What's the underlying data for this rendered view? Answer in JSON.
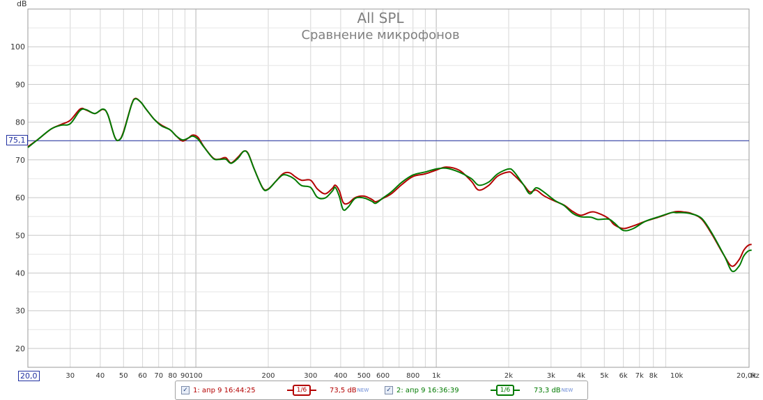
{
  "chart_data": {
    "type": "line",
    "title": "All SPL",
    "subtitle": "Сравнение микрофонов",
    "ylabel": "dB",
    "xunit": "Hz",
    "xscale": "log",
    "xlim": [
      20,
      20000
    ],
    "ylim": [
      15,
      110
    ],
    "grid": true,
    "ytick_labels": [
      "20",
      "30",
      "40",
      "50",
      "60",
      "70",
      "80",
      "90",
      "100"
    ],
    "xtick_labels": [
      "30",
      "40",
      "50",
      "60",
      "70",
      "80",
      "90",
      "100",
      "200",
      "300",
      "400",
      "500",
      "600",
      "800",
      "1k",
      "2k",
      "3k",
      "4k",
      "5k",
      "6k",
      "7k",
      "8k",
      "10k",
      "20,0k"
    ],
    "x_left_label": "20,0",
    "reference_line_label": "75,1",
    "reference_line_value": 75.1,
    "series": [
      {
        "name": "1: апр 9 16:44:25",
        "color": "#b30000",
        "smoothing": "1/6",
        "level": "73,5 dB",
        "level_badge": "NEW",
        "points": [
          [
            20,
            73.5
          ],
          [
            22,
            75.4
          ],
          [
            25,
            78.2
          ],
          [
            27.5,
            79.4
          ],
          [
            30,
            80.5
          ],
          [
            33,
            83.5
          ],
          [
            35,
            83.2
          ],
          [
            38,
            82.3
          ],
          [
            41,
            83.4
          ],
          [
            43,
            82
          ],
          [
            46,
            76
          ],
          [
            48,
            75.3
          ],
          [
            50,
            77.5
          ],
          [
            54,
            84.7
          ],
          [
            56,
            86.3
          ],
          [
            59,
            85.3
          ],
          [
            62,
            83.5
          ],
          [
            67,
            80.8
          ],
          [
            72,
            79.2
          ],
          [
            78,
            78
          ],
          [
            83,
            76.3
          ],
          [
            88,
            75
          ],
          [
            93,
            75.8
          ],
          [
            97,
            76.6
          ],
          [
            102,
            76
          ],
          [
            108,
            73.5
          ],
          [
            118,
            70.5
          ],
          [
            125,
            70.2
          ],
          [
            133,
            70.6
          ],
          [
            140,
            69.2
          ],
          [
            150,
            70.8
          ],
          [
            158,
            72.3
          ],
          [
            165,
            71.7
          ],
          [
            175,
            67.5
          ],
          [
            190,
            62.5
          ],
          [
            200,
            62.3
          ],
          [
            215,
            64.3
          ],
          [
            230,
            66.3
          ],
          [
            245,
            66.6
          ],
          [
            258,
            65.6
          ],
          [
            275,
            64.6
          ],
          [
            300,
            64.6
          ],
          [
            320,
            62.3
          ],
          [
            345,
            61
          ],
          [
            370,
            62.5
          ],
          [
            380,
            63.3
          ],
          [
            395,
            61.8
          ],
          [
            410,
            58.7
          ],
          [
            430,
            58.5
          ],
          [
            460,
            60
          ],
          [
            500,
            60.4
          ],
          [
            540,
            59.5
          ],
          [
            560,
            58.9
          ],
          [
            600,
            59.8
          ],
          [
            650,
            61
          ],
          [
            720,
            63.5
          ],
          [
            800,
            65.6
          ],
          [
            900,
            66.3
          ],
          [
            1000,
            67.3
          ],
          [
            1100,
            68.1
          ],
          [
            1250,
            67.2
          ],
          [
            1400,
            64.3
          ],
          [
            1500,
            62
          ],
          [
            1650,
            63.2
          ],
          [
            1800,
            65.7
          ],
          [
            2000,
            66.8
          ],
          [
            2100,
            66
          ],
          [
            2300,
            63.5
          ],
          [
            2450,
            61.5
          ],
          [
            2600,
            62
          ],
          [
            2800,
            60.5
          ],
          [
            3100,
            59.1
          ],
          [
            3400,
            58
          ],
          [
            3700,
            56.3
          ],
          [
            4000,
            55.3
          ],
          [
            4400,
            56.2
          ],
          [
            4700,
            55.9
          ],
          [
            5200,
            54.5
          ],
          [
            5500,
            52.8
          ],
          [
            6000,
            51.8
          ],
          [
            6600,
            52.5
          ],
          [
            7400,
            53.7
          ],
          [
            8400,
            54.8
          ],
          [
            9500,
            56
          ],
          [
            10000,
            56.3
          ],
          [
            10700,
            56.2
          ],
          [
            11500,
            55.8
          ],
          [
            12700,
            54.3
          ],
          [
            14000,
            50.3
          ],
          [
            15800,
            44.5
          ],
          [
            17000,
            41.8
          ],
          [
            18200,
            43.6
          ],
          [
            19000,
            46
          ],
          [
            19800,
            47.3
          ],
          [
            20500,
            47.6
          ]
        ]
      },
      {
        "name": "2: апр 9 16:36:39",
        "color": "#007a00",
        "smoothing": "1/6",
        "level": "73,3 dB",
        "level_badge": "NEW",
        "points": [
          [
            20,
            73.3
          ],
          [
            22,
            75.4
          ],
          [
            25,
            78.2
          ],
          [
            27.5,
            79.2
          ],
          [
            30,
            79.6
          ],
          [
            33,
            83.1
          ],
          [
            35,
            83.3
          ],
          [
            38,
            82.3
          ],
          [
            41,
            83.5
          ],
          [
            43,
            82
          ],
          [
            46,
            76
          ],
          [
            48,
            75.3
          ],
          [
            50,
            77.3
          ],
          [
            54,
            84.6
          ],
          [
            56,
            86.2
          ],
          [
            59,
            85.3
          ],
          [
            62,
            83.5
          ],
          [
            67,
            80.8
          ],
          [
            72,
            79
          ],
          [
            78,
            78
          ],
          [
            83,
            76.3
          ],
          [
            88,
            75.3
          ],
          [
            93,
            75.8
          ],
          [
            97,
            76.3
          ],
          [
            102,
            75.5
          ],
          [
            108,
            73.4
          ],
          [
            118,
            70.4
          ],
          [
            125,
            70.1
          ],
          [
            133,
            70.2
          ],
          [
            140,
            69.1
          ],
          [
            150,
            70.5
          ],
          [
            158,
            72.3
          ],
          [
            165,
            71.6
          ],
          [
            175,
            67.5
          ],
          [
            190,
            62.4
          ],
          [
            200,
            62.2
          ],
          [
            215,
            64.3
          ],
          [
            230,
            66
          ],
          [
            245,
            65.7
          ],
          [
            258,
            64.8
          ],
          [
            275,
            63.2
          ],
          [
            300,
            62.7
          ],
          [
            320,
            60.1
          ],
          [
            345,
            59.9
          ],
          [
            370,
            61.8
          ],
          [
            380,
            62.7
          ],
          [
            395,
            60.3
          ],
          [
            410,
            56.8
          ],
          [
            430,
            57.5
          ],
          [
            460,
            59.8
          ],
          [
            500,
            59.9
          ],
          [
            540,
            59
          ],
          [
            560,
            58.5
          ],
          [
            600,
            59.9
          ],
          [
            650,
            61.5
          ],
          [
            720,
            64.1
          ],
          [
            800,
            66
          ],
          [
            900,
            66.8
          ],
          [
            1000,
            67.6
          ],
          [
            1100,
            67.8
          ],
          [
            1250,
            66.7
          ],
          [
            1400,
            65
          ],
          [
            1500,
            63.3
          ],
          [
            1650,
            64.1
          ],
          [
            1800,
            66.3
          ],
          [
            2000,
            67.6
          ],
          [
            2100,
            66.9
          ],
          [
            2300,
            63.5
          ],
          [
            2450,
            61
          ],
          [
            2600,
            62.6
          ],
          [
            2800,
            61.5
          ],
          [
            3100,
            59.3
          ],
          [
            3400,
            57.9
          ],
          [
            3700,
            55.8
          ],
          [
            4000,
            54.9
          ],
          [
            4400,
            54.8
          ],
          [
            4700,
            54.2
          ],
          [
            5200,
            54.3
          ],
          [
            5500,
            53.3
          ],
          [
            6000,
            51.3
          ],
          [
            6600,
            51.8
          ],
          [
            7400,
            53.7
          ],
          [
            8400,
            54.9
          ],
          [
            9500,
            56
          ],
          [
            10000,
            56
          ],
          [
            10700,
            56
          ],
          [
            11500,
            55.7
          ],
          [
            12700,
            54.5
          ],
          [
            14000,
            50.6
          ],
          [
            15800,
            44.5
          ],
          [
            17000,
            40.5
          ],
          [
            18200,
            41.9
          ],
          [
            19000,
            44.5
          ],
          [
            19800,
            45.8
          ],
          [
            20500,
            46.1
          ]
        ]
      }
    ]
  }
}
